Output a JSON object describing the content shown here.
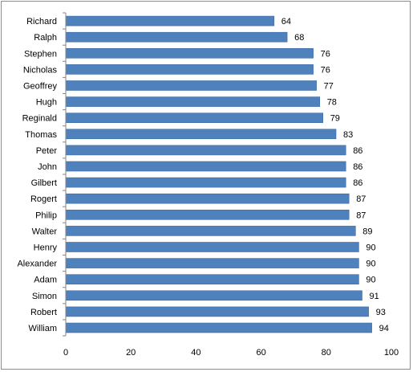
{
  "chart_data": {
    "type": "bar",
    "orientation": "horizontal",
    "categories": [
      "Richard",
      "Ralph",
      "Stephen",
      "Nicholas",
      "Geoffrey",
      "Hugh",
      "Reginald",
      "Thomas",
      "Peter",
      "John",
      "Gilbert",
      "Rogert",
      "Philip",
      "Walter",
      "Henry",
      "Alexander",
      "Adam",
      "Simon",
      "Robert",
      "William"
    ],
    "values": [
      64,
      68,
      76,
      76,
      77,
      78,
      79,
      83,
      86,
      86,
      86,
      87,
      87,
      89,
      90,
      90,
      90,
      91,
      93,
      94
    ],
    "xlim": [
      0,
      100
    ],
    "xticks": [
      0,
      20,
      40,
      60,
      80,
      100
    ],
    "grid": false,
    "legend": "none",
    "colors": {
      "bar": "#4f81bd",
      "bar_edge": "#3a6aa5",
      "axis": "#868686"
    }
  }
}
